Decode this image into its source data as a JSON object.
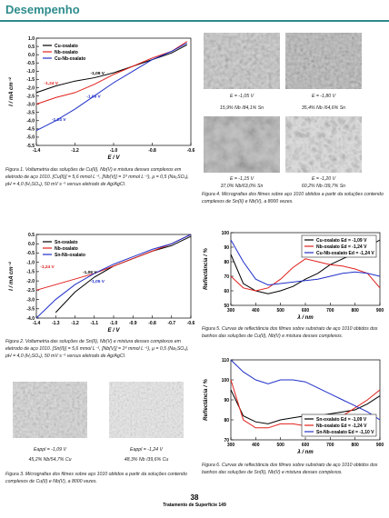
{
  "header": {
    "title": "Desempenho"
  },
  "chart_data": [
    {
      "type": "line",
      "xlabel": "E / V",
      "ylabel": "I / mA cm⁻²",
      "legend": "upper left",
      "x": [
        -1.4,
        -1.3,
        -1.2,
        -1.1,
        -1.0,
        -0.9,
        -0.8,
        -0.7,
        -0.62
      ],
      "series": [
        {
          "name": "Cu-oxalato",
          "color": "#000000",
          "values": [
            -2.3,
            -1.9,
            -1.6,
            -1.4,
            -1.1,
            -0.7,
            -0.3,
            0.1,
            0.6
          ]
        },
        {
          "name": "Nb-oxalato",
          "color": "#e0201c",
          "values": [
            -3.0,
            -2.6,
            -2.3,
            -1.8,
            -1.2,
            -0.7,
            -0.2,
            0.2,
            0.8
          ]
        },
        {
          "name": "Cu-Nb-oxalato",
          "color": "#2030c8",
          "values": [
            -4.6,
            -4.0,
            -3.3,
            -2.5,
            -1.7,
            -1.0,
            -0.3,
            0.2,
            0.7
          ]
        }
      ],
      "annotations": [
        {
          "text": "-1,09 V",
          "x": -1.12,
          "y": -1.2,
          "color": "#000000"
        },
        {
          "text": "-1,24 V",
          "x": -1.36,
          "y": -1.8,
          "color": "#e0201c"
        },
        {
          "text": "-1,09 V",
          "x": -1.14,
          "y": -2.6,
          "color": "#2030c8"
        },
        {
          "text": "-1,24 V",
          "x": -1.32,
          "y": -4.0,
          "color": "#2030c8"
        }
      ],
      "xlim": [
        -1.4,
        -0.6
      ],
      "xticks": [
        -1.4,
        -1.2,
        {
          "value": -1.0,
          "label": "-1.0"
        },
        -0.8,
        -0.6
      ],
      "ylim": [
        -5.5,
        1.0
      ],
      "yticks": [
        {
          "value": 1.0,
          "label": "1.0"
        },
        0.5,
        {
          "value": 0.0,
          "label": "0.0"
        },
        -0.5,
        {
          "value": -1.0,
          "label": "-1.0"
        },
        -1.5,
        {
          "value": -2.0,
          "label": "-2.0"
        },
        -2.5,
        {
          "value": -3.0,
          "label": "-3.0"
        },
        -3.5,
        {
          "value": -4.0,
          "label": "-4.0"
        },
        -4.5,
        {
          "value": -5.0,
          "label": "-5.0"
        },
        -5.5
      ]
    },
    {
      "type": "line",
      "xlabel": "E / V",
      "ylabel": "I / mA cm⁻²",
      "legend": "upper left",
      "x": [
        -1.4,
        -1.3,
        -1.2,
        -1.1,
        -1.0,
        -0.9,
        -0.8,
        -0.7,
        -0.6
      ],
      "series": [
        {
          "name": "Sn-oxalato",
          "color": "#000000",
          "values": [
            null,
            -3.7,
            -2.6,
            -1.8,
            -1.2,
            -0.8,
            -0.4,
            -0.1,
            0.4
          ]
        },
        {
          "name": "Nb-oxalato",
          "color": "#e0201c",
          "values": [
            -2.5,
            -2.2,
            -1.9,
            -1.6,
            -1.2,
            -0.8,
            -0.4,
            0.0,
            0.5
          ]
        },
        {
          "name": "Sn-Nb-oxalato",
          "color": "#2030c8",
          "values": [
            -4.0,
            -3.0,
            -2.2,
            -1.6,
            -1.1,
            -0.7,
            -0.3,
            0.0,
            0.5
          ]
        }
      ],
      "annotations": [
        {
          "text": "-1,24 V",
          "x": -1.38,
          "y": -1.3,
          "color": "#e0201c"
        },
        {
          "text": "-1,09 V",
          "x": -1.16,
          "y": -1.6,
          "color": "#000000"
        },
        {
          "text": "-1,05 V",
          "x": -1.12,
          "y": -2.1,
          "color": "#2030c8"
        }
      ],
      "xlim": [
        -1.4,
        -0.6
      ],
      "xticks": [
        -1.4,
        -1.3,
        -1.2,
        -1.1,
        {
          "value": -1.0,
          "label": "-1.0"
        },
        -0.9,
        -0.8,
        -0.7,
        -0.6
      ],
      "ylim": [
        -4.0,
        0.5
      ],
      "yticks": [
        0.5,
        {
          "value": 0.0,
          "label": "0.0"
        },
        -0.5,
        {
          "value": -1.0,
          "label": "-1.0"
        },
        -1.5,
        {
          "value": -2.0,
          "label": "-2.0"
        },
        -2.5,
        {
          "value": -3.0,
          "label": "-3.0"
        },
        -3.5,
        {
          "value": -4.0,
          "label": "-4.0"
        }
      ]
    },
    {
      "type": "line",
      "xlabel": "λ / nm",
      "ylabel": "Reflectância / %",
      "legend": "upper right",
      "x": [
        300,
        350,
        400,
        450,
        500,
        550,
        600,
        650,
        700,
        750,
        800,
        850,
        900
      ],
      "series": [
        {
          "name": "Cu-oxalato Ed = -1,09 V",
          "color": "#000000",
          "values": [
            85,
            65,
            60,
            58,
            60,
            63,
            68,
            72,
            78,
            82,
            86,
            90,
            95
          ]
        },
        {
          "name": "Nb-oxalato Ed = -1,24 V",
          "color": "#e0201c",
          "values": [
            70,
            62,
            60,
            62,
            68,
            76,
            82,
            80,
            78,
            77,
            75,
            72,
            62
          ]
        },
        {
          "name": "Cu-Nb-oxalato Ed = -1,24 V",
          "color": "#2030c8",
          "values": [
            95,
            80,
            68,
            64,
            65,
            66,
            67,
            68,
            70,
            72,
            73,
            72,
            70
          ]
        }
      ],
      "xlim": [
        300,
        900
      ],
      "xticks": [
        300,
        400,
        500,
        600,
        700,
        800,
        900
      ],
      "ylim": [
        50,
        100
      ],
      "yticks": [
        50,
        60,
        70,
        80,
        90,
        100
      ]
    },
    {
      "type": "line",
      "xlabel": "λ / nm",
      "ylabel": "Reflectância / %",
      "legend": "lower right",
      "x": [
        300,
        350,
        400,
        450,
        500,
        550,
        600,
        650,
        700,
        750,
        800,
        850,
        900
      ],
      "series": [
        {
          "name": "Sn-oxalato Ed = -1,09 V",
          "color": "#000000",
          "values": [
            95,
            82,
            79,
            78,
            80,
            81,
            82,
            82,
            83,
            84,
            85,
            88,
            92
          ]
        },
        {
          "name": "Nb-oxalato Ed = -1,24 V",
          "color": "#e0201c",
          "values": [
            100,
            80,
            76,
            76,
            78,
            78,
            77,
            79,
            80,
            82,
            86,
            90,
            95
          ]
        },
        {
          "name": "Sn-Nb-oxalato Ed = -1,10 V",
          "color": "#2030c8",
          "values": [
            110,
            104,
            100,
            98,
            100,
            100,
            99,
            96,
            93,
            90,
            87,
            84,
            80
          ]
        }
      ],
      "xlim": [
        300,
        900
      ],
      "xticks": [
        300,
        400,
        500,
        600,
        700,
        800,
        900
      ],
      "ylim": [
        70,
        110
      ],
      "yticks": [
        70,
        80,
        90,
        100,
        110
      ]
    }
  ],
  "captions": {
    "fig1": "Figura 1. Voltametria das soluções de Cu(II), Nb(V) e mistura desses complexos em eletrodo de aço 1010. [Cu(II)] = 5,6 mmol L⁻¹, [Nb(V)] = 1⁸ mmol L⁻¹), μ = 0,5 (Na₂SO₄), pH = 4,0 (H₂SO₄), 50 mV s⁻¹ versus eletrodo de Ag/AgCl.",
    "fig2": "Figura 2. Voltametria das soluções de Sn(II), Nb(V) e mistura desses complexos em eletrodo de aço 1010. [Sn(II)] = 5,6 mmol L⁻¹, [Nb(V)] = 1⁸ mmol L⁻¹), μ = 0,5 (Na₂SO₄), pH = 4,0 (H₂SO₄), 50 mV s⁻¹ versus eletrodo de Ag/AgCl.",
    "fig3": "Figura 3. Micrografias dos filmes sobre aço 1010 obtidos a partir da soluções contendo complexos de Cu(II) e Nb(V), a 8000 vezes.",
    "fig4": "Figura 4. Micrografias dos filmes sobre aço 1010 obtidos a partir da soluções contendo complexos de Sn(II) e Nb(V), a 8000 vezes.",
    "fig5": "Figura 5. Curvas de reflectância dos filmes sobre substrato de aço 1010 obtidos dos banhos das soluções de Cu(II), Nb(V) e mistura desses complexos.",
    "fig6": "Figura 6. Curvas de reflectância dos filmes sobre substrato de aço 1010 obtidos dos banhos das soluções de Sn(II), Nb(V) e mistura desses complexos."
  },
  "micrographs": {
    "fig3": [
      {
        "potential": "Eappl = -1,09 V",
        "composition": "45,2% Nb/54,7% Cu"
      },
      {
        "potential": "Eappl = -1,24 V",
        "composition": "48,3% Nb /39,6% Cu"
      }
    ],
    "fig4": [
      {
        "potential": "E = -1,05 V",
        "composition": "15,9% Nb /84,1% Sn"
      },
      {
        "potential": "E = -1,80 V",
        "composition": "35,4% Nb /64,6% Sn"
      },
      {
        "potential": "E = -1,15 V",
        "composition": "37,0% Nb/63,0% Sn"
      },
      {
        "potential": "E = -1,20 V",
        "composition": "60,2% Nb /39,7% Sn"
      }
    ]
  },
  "footer": {
    "page": "38",
    "journal": "Tratamento de Superfície 149"
  }
}
